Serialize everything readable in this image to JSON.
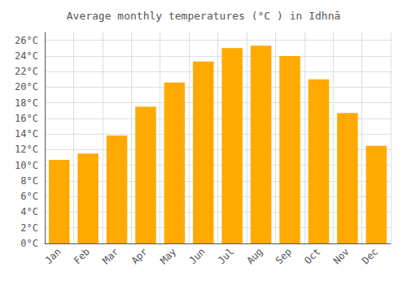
{
  "chart_data": {
    "type": "bar",
    "title": "Average monthly temperatures (°C ) in Idhnā",
    "categories": [
      "Jan",
      "Feb",
      "Mar",
      "Apr",
      "May",
      "Jun",
      "Jul",
      "Aug",
      "Sep",
      "Oct",
      "Nov",
      "Dec"
    ],
    "values": [
      10.7,
      11.5,
      13.8,
      17.5,
      20.6,
      23.3,
      25.0,
      25.3,
      24.0,
      21.0,
      16.7,
      12.5
    ],
    "color": "#FFAA00",
    "ylim": [
      0,
      27
    ],
    "yticks": [
      {
        "value": 0,
        "label": "0°C"
      },
      {
        "value": 2,
        "label": "2°C"
      },
      {
        "value": 4,
        "label": "4°C"
      },
      {
        "value": 6,
        "label": "6°C"
      },
      {
        "value": 8,
        "label": "8°C"
      },
      {
        "value": 10,
        "label": "10°C"
      },
      {
        "value": 12,
        "label": "12°C"
      },
      {
        "value": 14,
        "label": "14°C"
      },
      {
        "value": 16,
        "label": "16°C"
      },
      {
        "value": 18,
        "label": "18°C"
      },
      {
        "value": 20,
        "label": "20°C"
      },
      {
        "value": 22,
        "label": "22°C"
      },
      {
        "value": 24,
        "label": "24°C"
      },
      {
        "value": 26,
        "label": "26°C"
      }
    ],
    "grid": true
  }
}
